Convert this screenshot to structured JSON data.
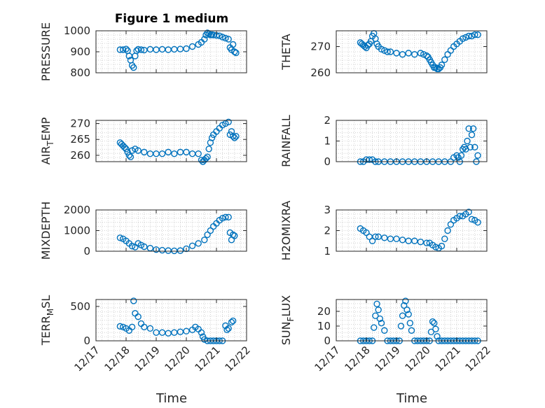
{
  "figure": {
    "title": "Figure 1 medium",
    "xlabel": "Time",
    "marker_color": "#0072bd",
    "x_ticklabels": [
      "12/17",
      "12/18",
      "12/19",
      "12/20",
      "12/21",
      "12/22"
    ]
  },
  "chart_data": [
    {
      "type": "scatter",
      "ylabel": "PRESSURE",
      "ylim": [
        800,
        1000
      ],
      "yticks": [
        800,
        900,
        1000
      ],
      "xlim": [
        17,
        22
      ],
      "grid": true,
      "x": [
        17.8,
        17.9,
        18.0,
        18.05,
        18.1,
        18.15,
        18.2,
        18.25,
        18.3,
        18.35,
        18.4,
        18.5,
        18.6,
        18.8,
        19.0,
        19.2,
        19.4,
        19.6,
        19.8,
        20.0,
        20.2,
        20.4,
        20.5,
        20.6,
        20.65,
        20.7,
        20.75,
        20.8,
        20.85,
        20.9,
        21.0,
        21.1,
        21.2,
        21.3,
        21.4,
        21.45,
        21.5,
        21.55,
        21.6,
        21.65
      ],
      "y": [
        910,
        910,
        913,
        905,
        880,
        860,
        835,
        825,
        880,
        905,
        912,
        910,
        908,
        912,
        910,
        912,
        910,
        912,
        913,
        915,
        925,
        935,
        945,
        960,
        980,
        990,
        985,
        980,
        982,
        980,
        978,
        976,
        970,
        965,
        960,
        920,
        910,
        935,
        900,
        895
      ]
    },
    {
      "type": "scatter",
      "ylabel": "THETA",
      "ylim": [
        260,
        276
      ],
      "yticks": [
        260,
        270
      ],
      "xlim": [
        17,
        22
      ],
      "grid": true,
      "x": [
        17.8,
        17.85,
        17.9,
        17.95,
        18.0,
        18.05,
        18.1,
        18.15,
        18.2,
        18.25,
        18.3,
        18.35,
        18.4,
        18.5,
        18.6,
        18.7,
        18.8,
        19.0,
        19.2,
        19.4,
        19.6,
        19.8,
        19.9,
        20.0,
        20.05,
        20.1,
        20.15,
        20.2,
        20.25,
        20.3,
        20.35,
        20.4,
        20.45,
        20.5,
        20.6,
        20.7,
        20.8,
        20.9,
        21.0,
        21.1,
        21.2,
        21.3,
        21.4,
        21.5,
        21.6,
        21.7
      ],
      "y": [
        271.5,
        271,
        270.5,
        270,
        269.5,
        270.5,
        271,
        272,
        274,
        275,
        273,
        271,
        270,
        269,
        268.5,
        268,
        268,
        267.5,
        267,
        267.5,
        267,
        267.5,
        267,
        266.5,
        266,
        265,
        264,
        263,
        262,
        262,
        261.5,
        261.5,
        262,
        263,
        265,
        267,
        268.5,
        270,
        271,
        272,
        273,
        273.5,
        274,
        274,
        274.5,
        274.5
      ]
    },
    {
      "type": "scatter",
      "ylabel": "AIR_TEMP",
      "ylim": [
        258,
        271
      ],
      "yticks": [
        260,
        265,
        270
      ],
      "xlim": [
        17,
        22
      ],
      "grid": true,
      "x": [
        17.8,
        17.85,
        17.9,
        17.95,
        18.0,
        18.05,
        18.1,
        18.15,
        18.2,
        18.3,
        18.4,
        18.6,
        18.8,
        19.0,
        19.2,
        19.4,
        19.6,
        19.8,
        20.0,
        20.2,
        20.4,
        20.5,
        20.55,
        20.6,
        20.65,
        20.7,
        20.75,
        20.8,
        20.85,
        20.9,
        21.0,
        21.1,
        21.2,
        21.3,
        21.4,
        21.45,
        21.5,
        21.55,
        21.6,
        21.65
      ],
      "y": [
        264,
        263.5,
        263,
        262.5,
        262,
        261,
        260,
        259.5,
        261.5,
        262,
        261.5,
        261,
        260.5,
        260.5,
        260.5,
        261,
        260.5,
        261,
        261,
        260.5,
        260.5,
        258.5,
        258,
        258.5,
        259,
        259.5,
        262,
        264,
        265.5,
        266.5,
        267.5,
        268.5,
        269.5,
        270,
        270.5,
        266.5,
        267.5,
        266,
        265.5,
        266
      ]
    },
    {
      "type": "scatter",
      "ylabel": "RAINFALL",
      "ylim": [
        0,
        2
      ],
      "yticks": [
        0,
        1,
        2
      ],
      "xlim": [
        17,
        22
      ],
      "grid": true,
      "x": [
        17.8,
        17.9,
        18.0,
        18.1,
        18.2,
        18.3,
        18.4,
        18.6,
        18.8,
        19.0,
        19.2,
        19.4,
        19.6,
        19.8,
        20.0,
        20.2,
        20.4,
        20.6,
        20.8,
        20.9,
        21.0,
        21.05,
        21.1,
        21.15,
        21.2,
        21.25,
        21.3,
        21.35,
        21.4,
        21.45,
        21.5,
        21.55,
        21.6,
        21.65,
        21.7
      ],
      "y": [
        0,
        0,
        0.1,
        0.1,
        0.1,
        0,
        0,
        0,
        0,
        0,
        0,
        0,
        0,
        0,
        0,
        0,
        0,
        0,
        0,
        0.2,
        0.3,
        0.2,
        0,
        0.3,
        0.6,
        0.7,
        0.6,
        1.0,
        1.6,
        0.7,
        1.3,
        1.6,
        0.7,
        0,
        0.3
      ]
    },
    {
      "type": "scatter",
      "ylabel": "MIXDEPTH",
      "ylim": [
        0,
        2000
      ],
      "yticks": [
        0,
        1000,
        2000
      ],
      "xlim": [
        17,
        22
      ],
      "grid": true,
      "x": [
        17.8,
        17.9,
        18.0,
        18.1,
        18.2,
        18.3,
        18.4,
        18.5,
        18.6,
        18.8,
        19.0,
        19.2,
        19.4,
        19.6,
        19.8,
        20.0,
        20.2,
        20.4,
        20.6,
        20.7,
        20.8,
        20.9,
        21.0,
        21.1,
        21.2,
        21.3,
        21.4,
        21.45,
        21.5,
        21.55,
        21.6
      ],
      "y": [
        650,
        600,
        500,
        380,
        250,
        200,
        380,
        300,
        220,
        150,
        80,
        50,
        30,
        20,
        30,
        120,
        260,
        380,
        550,
        800,
        1000,
        1200,
        1350,
        1500,
        1600,
        1650,
        1650,
        900,
        550,
        800,
        750
      ]
    },
    {
      "type": "scatter",
      "ylabel": "H2OMIXRA",
      "ylim": [
        1,
        3
      ],
      "yticks": [
        1,
        2,
        3
      ],
      "xlim": [
        17,
        22
      ],
      "grid": true,
      "x": [
        17.8,
        17.9,
        18.0,
        18.1,
        18.2,
        18.3,
        18.4,
        18.6,
        18.8,
        19.0,
        19.2,
        19.4,
        19.6,
        19.8,
        20.0,
        20.1,
        20.2,
        20.3,
        20.4,
        20.5,
        20.6,
        20.7,
        20.8,
        20.9,
        21.0,
        21.1,
        21.2,
        21.3,
        21.4,
        21.5,
        21.6,
        21.7
      ],
      "y": [
        2.1,
        2.0,
        1.9,
        1.7,
        1.5,
        1.7,
        1.7,
        1.65,
        1.6,
        1.6,
        1.55,
        1.5,
        1.5,
        1.45,
        1.4,
        1.4,
        1.3,
        1.2,
        1.15,
        1.25,
        1.6,
        2.0,
        2.3,
        2.5,
        2.6,
        2.7,
        2.7,
        2.8,
        2.9,
        2.55,
        2.5,
        2.4
      ]
    },
    {
      "type": "scatter",
      "ylabel": "TERR_MSL",
      "ylim": [
        0,
        600
      ],
      "yticks": [
        0,
        500
      ],
      "xlim": [
        17,
        22
      ],
      "grid": true,
      "x": [
        17.8,
        17.9,
        18.0,
        18.1,
        18.2,
        18.25,
        18.3,
        18.4,
        18.5,
        18.6,
        18.8,
        19.0,
        19.2,
        19.4,
        19.6,
        19.8,
        20.0,
        20.2,
        20.3,
        20.4,
        20.5,
        20.55,
        20.6,
        20.7,
        20.8,
        20.9,
        21.0,
        21.1,
        21.2,
        21.3,
        21.35,
        21.4,
        21.5,
        21.55
      ],
      "y": [
        210,
        200,
        180,
        150,
        200,
        580,
        400,
        350,
        250,
        200,
        180,
        120,
        120,
        110,
        120,
        130,
        140,
        160,
        200,
        170,
        120,
        60,
        20,
        0,
        0,
        0,
        0,
        0,
        0,
        220,
        160,
        180,
        270,
        290
      ]
    },
    {
      "type": "scatter",
      "ylabel": "SUN_FLUX",
      "ylim": [
        0,
        28
      ],
      "yticks": [
        0,
        10,
        20
      ],
      "xlim": [
        17,
        22
      ],
      "grid": true,
      "x": [
        17.8,
        17.9,
        18.0,
        18.1,
        18.2,
        18.25,
        18.3,
        18.35,
        18.4,
        18.45,
        18.5,
        18.6,
        18.7,
        18.8,
        18.9,
        19.0,
        19.1,
        19.15,
        19.2,
        19.25,
        19.3,
        19.35,
        19.4,
        19.45,
        19.5,
        19.6,
        19.7,
        19.8,
        19.9,
        20.0,
        20.1,
        20.15,
        20.2,
        20.25,
        20.3,
        20.35,
        20.4,
        20.5,
        20.6,
        20.7,
        20.8,
        20.9,
        21.0,
        21.1,
        21.2,
        21.3,
        21.4,
        21.5,
        21.6,
        21.7
      ],
      "y": [
        0,
        0,
        0,
        0,
        0,
        9,
        17,
        25,
        21,
        15,
        12,
        7,
        0,
        0,
        0,
        0,
        0,
        10,
        17,
        24,
        27,
        21,
        18,
        12,
        7,
        0,
        0,
        0,
        0,
        0,
        0,
        6,
        13,
        12,
        8,
        3,
        0,
        0,
        0,
        0,
        0,
        0,
        0,
        0,
        0,
        0,
        0,
        0,
        0,
        0
      ]
    }
  ]
}
